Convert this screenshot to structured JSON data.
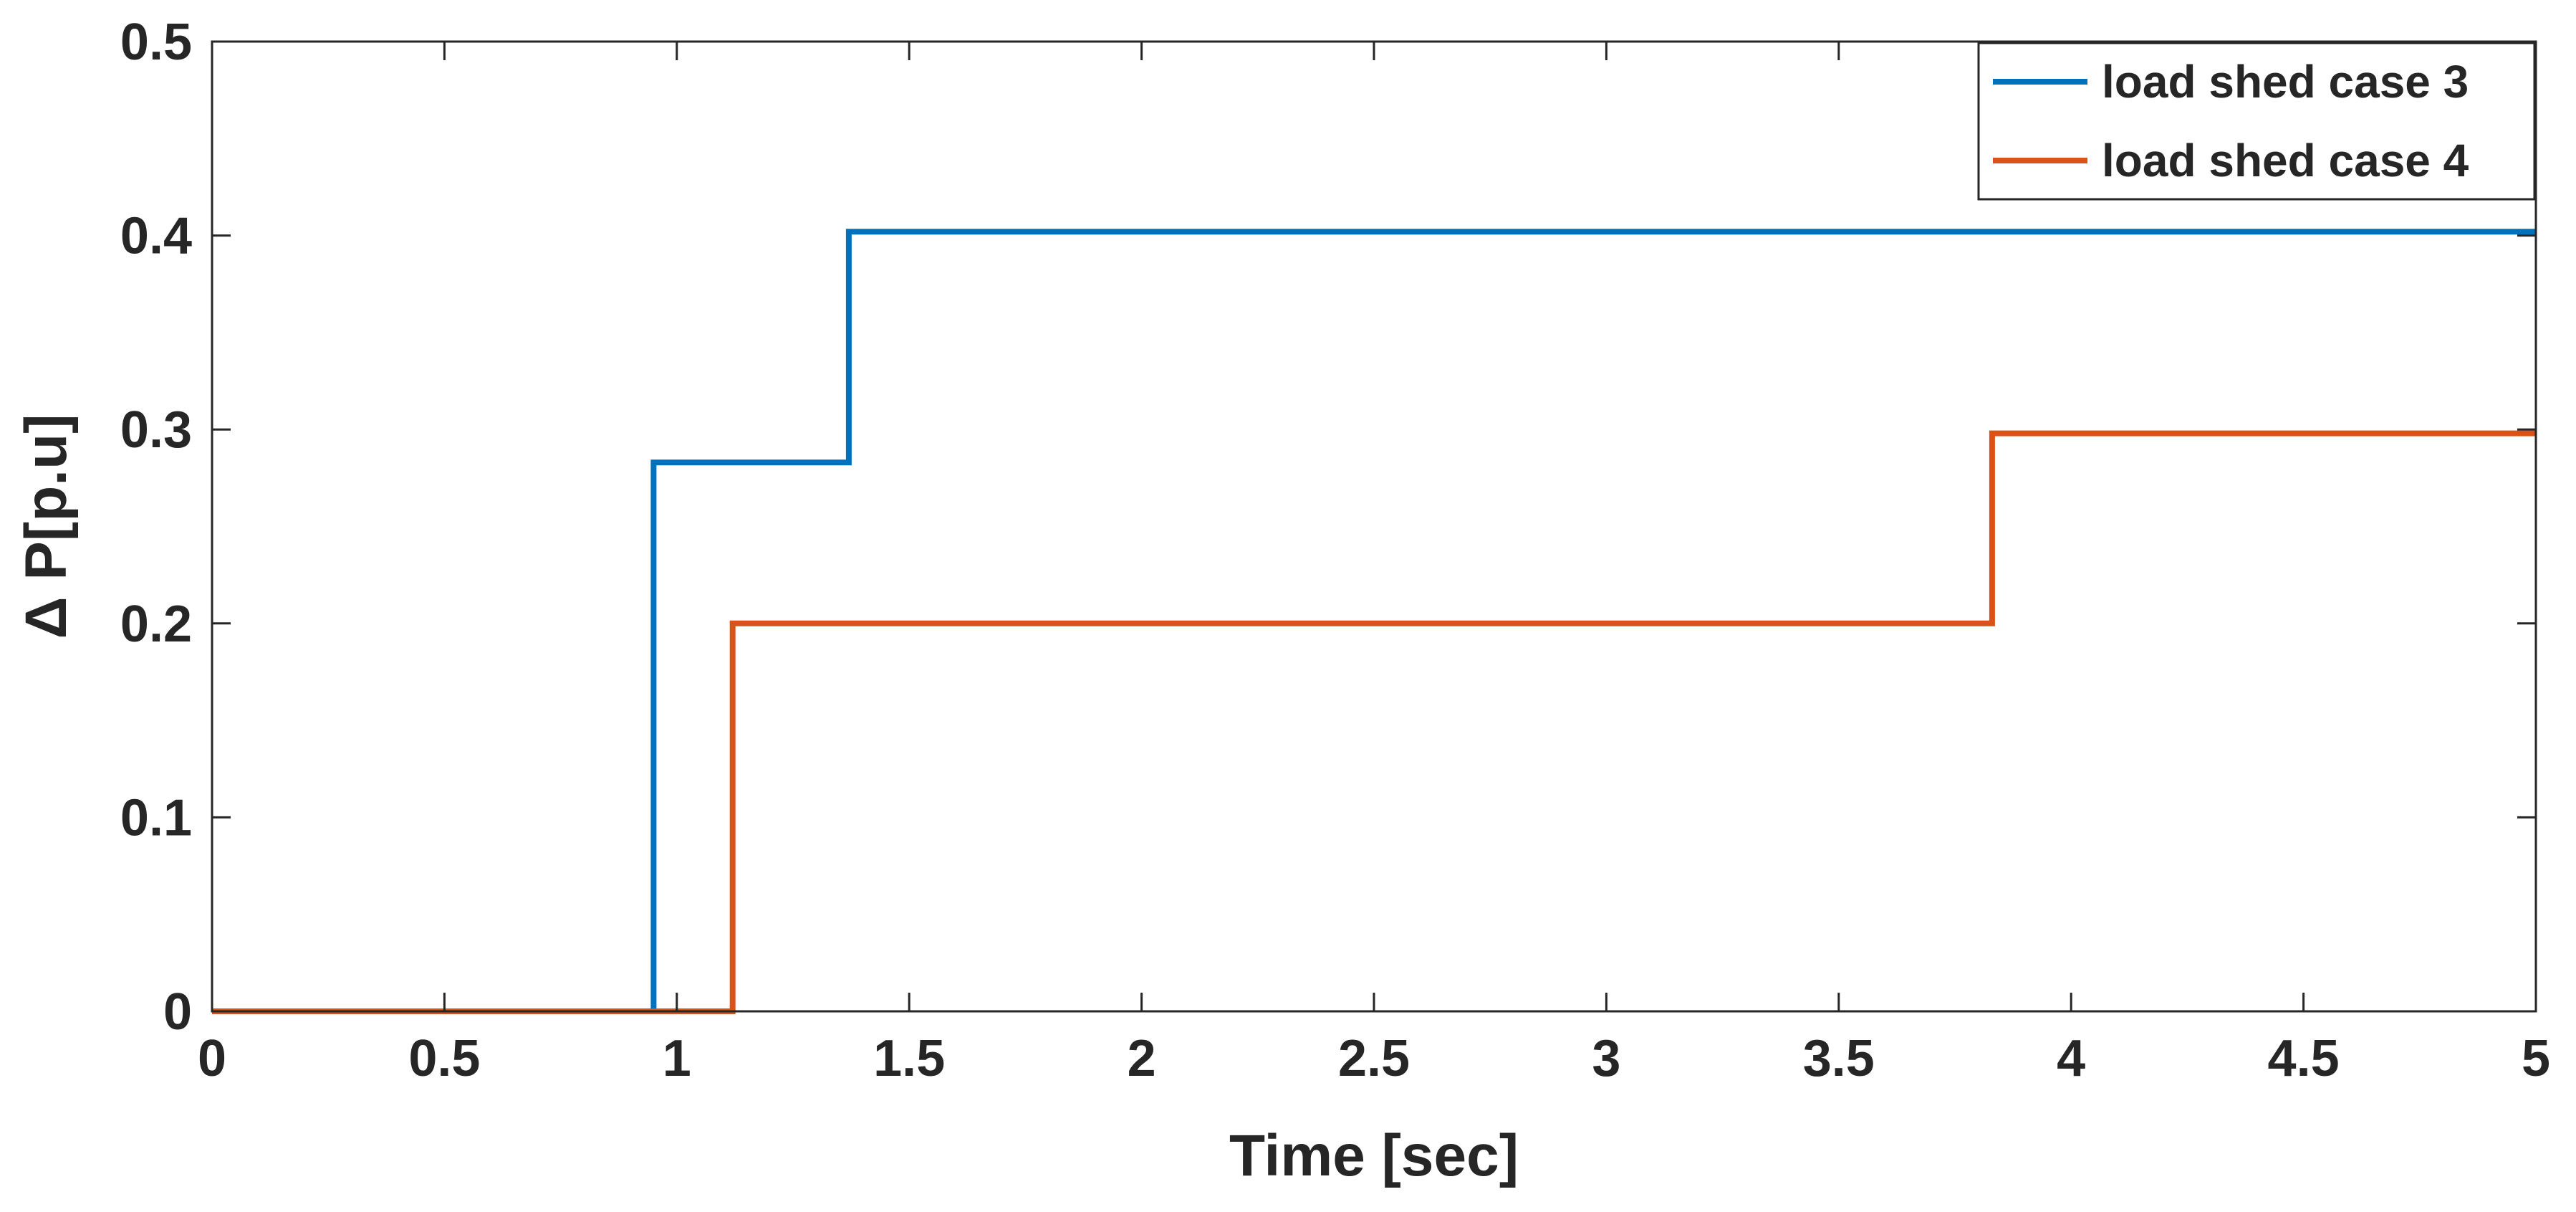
{
  "chart_data": {
    "type": "line",
    "title": "",
    "xlabel": "Time [sec]",
    "ylabel": "Δ P[p.u]",
    "xlim": [
      0,
      5
    ],
    "ylim": [
      0,
      0.5
    ],
    "x_ticks": [
      0,
      0.5,
      1,
      1.5,
      2,
      2.5,
      3,
      3.5,
      4,
      4.5,
      5
    ],
    "x_tick_labels": [
      "0",
      "0.5",
      "1",
      "1.5",
      "2",
      "2.5",
      "3",
      "3.5",
      "4",
      "4.5",
      "5"
    ],
    "y_ticks": [
      0,
      0.1,
      0.2,
      0.3,
      0.4,
      0.5
    ],
    "y_tick_labels": [
      "0",
      "0.1",
      "0.2",
      "0.3",
      "0.4",
      "0.5"
    ],
    "grid": false,
    "legend_position": "top-right",
    "series": [
      {
        "name": "load shed case 3",
        "color": "#0072BD",
        "x": [
          0,
          0.95,
          0.95,
          1.37,
          1.37,
          5
        ],
        "y": [
          0,
          0,
          0.283,
          0.283,
          0.402,
          0.402
        ]
      },
      {
        "name": "load shed case 4",
        "color": "#D95319",
        "x": [
          0,
          1.12,
          1.12,
          3.83,
          3.83,
          5
        ],
        "y": [
          0,
          0,
          0.2,
          0.2,
          0.298,
          0.298
        ]
      }
    ]
  }
}
